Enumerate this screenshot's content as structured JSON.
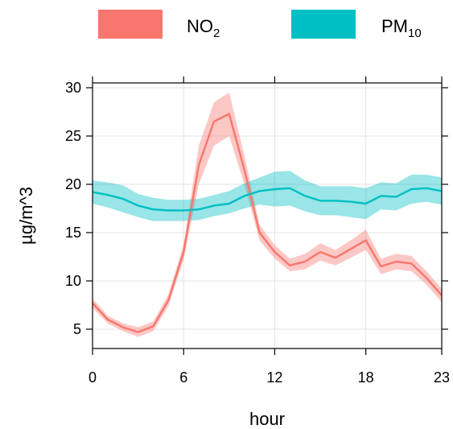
{
  "chart_data": {
    "type": "line",
    "title": "",
    "xlabel": "hour",
    "ylabel": "µg/m^3",
    "xlim": [
      0,
      23
    ],
    "ylim": [
      3,
      30.5
    ],
    "x_ticks": [
      0,
      6,
      12,
      18,
      23
    ],
    "y_ticks": [
      5,
      10,
      15,
      20,
      25,
      30
    ],
    "grid": true,
    "legend_position": "top",
    "x": [
      0,
      1,
      2,
      3,
      4,
      5,
      6,
      7,
      8,
      9,
      10,
      11,
      12,
      13,
      14,
      15,
      16,
      17,
      18,
      19,
      20,
      21,
      22,
      23
    ],
    "series": [
      {
        "name": "NO2",
        "name_main": "NO",
        "name_sub": "2",
        "line_color": "#f8766d",
        "band_color": "#f8766d",
        "values": [
          7.7,
          6.0,
          5.2,
          4.7,
          5.3,
          8.0,
          13.0,
          22.0,
          26.5,
          27.3,
          21.5,
          15.0,
          13.0,
          11.6,
          12.0,
          13.0,
          12.4,
          13.3,
          14.2,
          11.5,
          12.0,
          11.8,
          10.3,
          8.5
        ],
        "lower": [
          7.2,
          5.6,
          4.8,
          4.2,
          4.8,
          7.4,
          12.2,
          20.0,
          24.0,
          25.0,
          20.0,
          14.2,
          12.3,
          11.0,
          11.2,
          12.1,
          11.6,
          12.4,
          13.2,
          10.7,
          11.2,
          11.0,
          9.6,
          7.8
        ],
        "upper": [
          8.2,
          6.4,
          5.6,
          5.2,
          5.8,
          8.6,
          13.8,
          24.0,
          28.5,
          29.5,
          23.0,
          15.8,
          13.7,
          12.3,
          12.8,
          13.9,
          13.2,
          14.2,
          15.3,
          12.3,
          12.8,
          12.6,
          11.0,
          9.2
        ]
      },
      {
        "name": "PM10",
        "name_main": "PM",
        "name_sub": "10",
        "line_color": "#00bfc4",
        "band_color": "#00bfc4",
        "values": [
          19.2,
          18.9,
          18.5,
          17.8,
          17.4,
          17.3,
          17.3,
          17.4,
          17.8,
          18.0,
          18.8,
          19.3,
          19.5,
          19.6,
          18.8,
          18.3,
          18.3,
          18.2,
          18.0,
          18.8,
          18.7,
          19.5,
          19.6,
          19.3
        ],
        "lower": [
          18.0,
          17.6,
          17.1,
          16.6,
          16.2,
          16.2,
          16.2,
          16.3,
          16.7,
          17.0,
          17.5,
          17.9,
          17.7,
          17.8,
          17.2,
          16.8,
          16.8,
          16.6,
          16.4,
          17.4,
          17.3,
          18.0,
          18.2,
          17.9
        ],
        "upper": [
          20.4,
          20.2,
          19.9,
          19.0,
          18.6,
          18.4,
          18.4,
          18.5,
          18.9,
          19.3,
          20.1,
          20.7,
          21.3,
          21.4,
          20.4,
          19.8,
          19.8,
          19.8,
          19.6,
          20.2,
          20.1,
          21.0,
          21.0,
          20.7
        ]
      }
    ]
  }
}
